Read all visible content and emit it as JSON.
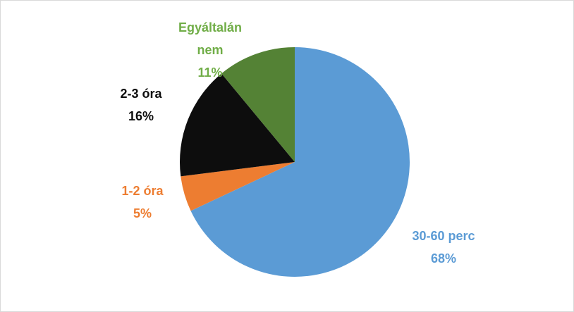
{
  "chart_data": {
    "type": "pie",
    "categories": [
      "30-60 perc",
      "1-2 óra",
      "2-3 óra",
      "Egyáltalán nem"
    ],
    "values": [
      68,
      5,
      16,
      11
    ],
    "value_labels": [
      "68%",
      "5%",
      "16%",
      "11%"
    ],
    "colors": [
      "#5b9bd5",
      "#ed7d31",
      "#0d0d0d",
      "#548235"
    ],
    "label_colors": [
      "#5b9bd5",
      "#ed7d31",
      "#0d0d0d",
      "#70ad47"
    ]
  }
}
